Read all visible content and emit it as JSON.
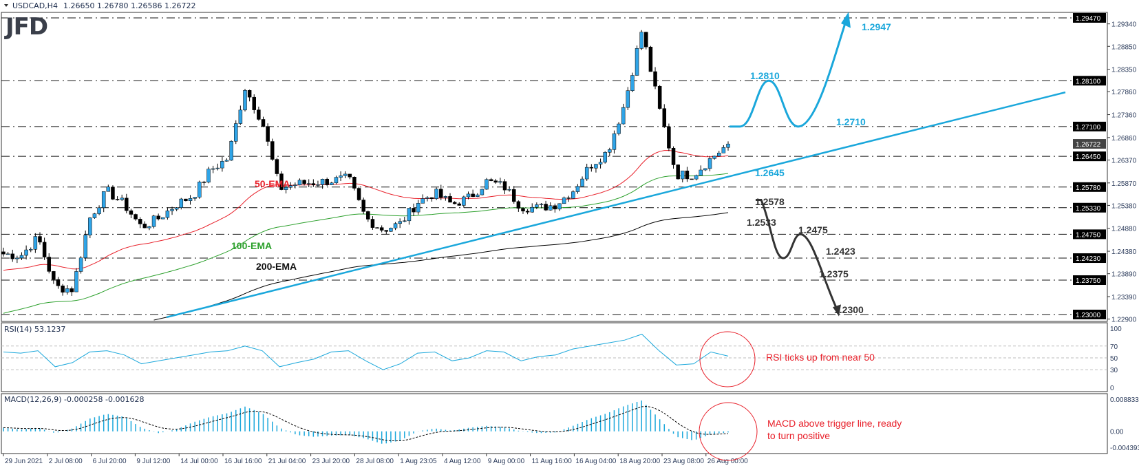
{
  "header": {
    "symbol": "USDCAD,H4",
    "ohlc": "1.26650 1.26780 1.26586 1.26722"
  },
  "logo": "JFD",
  "colors": {
    "accent": "#1aa7db",
    "ema50": "#e8202a",
    "ema100": "#2ca02c",
    "ema200": "#000000",
    "bull": "#2fa4e7",
    "bear": "#000000",
    "note": "#e8202a"
  },
  "chart_data": [
    {
      "type": "candlestick",
      "title": "USDCAD,H4",
      "ylim": [
        1.229,
        1.296
      ],
      "x_ticks": [
        "29 Jun 2021",
        "2 Jul 08:00",
        "6 Jul 20:00",
        "9 Jul 12:00",
        "14 Jul 00:00",
        "16 Jul 16:00",
        "21 Jul 04:00",
        "23 Jul 20:00",
        "28 Jul 08:00",
        "1 Aug 23:05",
        "4 Aug 12:00",
        "9 Aug 00:00",
        "11 Aug 16:00",
        "16 Aug 04:00",
        "18 Aug 20:00",
        "23 Aug 08:00",
        "26 Aug 00:00"
      ],
      "y_ticks": [
        "1.29340",
        "1.28850",
        "1.28350",
        "1.27860",
        "1.27360",
        "1.26860",
        "1.26370",
        "1.25870",
        "1.25380",
        "1.24880",
        "1.24380",
        "1.23890",
        "1.23390",
        "1.22900"
      ],
      "current_price": "1.26722",
      "close_samples": [
        1.2432,
        1.2428,
        1.2468,
        1.236,
        1.2355,
        1.251,
        1.257,
        1.254,
        1.249,
        1.251,
        1.254,
        1.256,
        1.2615,
        1.264,
        1.2795,
        1.272,
        1.2575,
        1.2585,
        1.2588,
        1.2592,
        1.2597,
        1.251,
        1.2485,
        1.2498,
        1.2545,
        1.2565,
        1.254,
        1.2555,
        1.259,
        1.258,
        1.2535,
        1.2532,
        1.254,
        1.257,
        1.2625,
        1.2655,
        1.276,
        1.292,
        1.275,
        1.2605,
        1.2605,
        1.264,
        1.2672
      ],
      "ema_labels": {
        "ema50": "50-EMA",
        "ema100": "100-EMA",
        "ema200": "200-EMA"
      },
      "levels": [
        {
          "price": 1.2947,
          "axis_label": "1.29470",
          "label": "1.2947",
          "color": "#1aa7db"
        },
        {
          "price": 1.281,
          "axis_label": "1.28100",
          "label": "1.2810",
          "color": "#1aa7db"
        },
        {
          "price": 1.271,
          "axis_label": "1.27100",
          "label": "1.2710",
          "color": "#1aa7db"
        },
        {
          "price": 1.2645,
          "axis_label": "1.26450",
          "label": "1.2645",
          "color": "#1aa7db"
        },
        {
          "price": 1.2578,
          "axis_label": "1.25780",
          "label": "1.2578",
          "color": "#333333"
        },
        {
          "price": 1.2533,
          "axis_label": "1.25330",
          "label": "1.2533",
          "color": "#333333"
        },
        {
          "price": 1.2475,
          "axis_label": "1.24750",
          "label": "1.2475",
          "color": "#333333"
        },
        {
          "price": 1.2423,
          "axis_label": "1.24230",
          "label": "1.2423",
          "color": "#333333"
        },
        {
          "price": 1.2375,
          "axis_label": "1.23750",
          "label": "1.2375",
          "color": "#333333"
        },
        {
          "price": 1.23,
          "axis_label": "1.23000",
          "label": "1.2300",
          "color": "#333333"
        }
      ],
      "trendline": {
        "from": 1.2294,
        "to": 1.2805
      }
    },
    {
      "type": "line",
      "title": "RSI(14) 53.1237",
      "ylim": [
        0,
        100
      ],
      "y_ticks": [
        "100",
        "70",
        "50",
        "30",
        "0"
      ],
      "values": [
        60,
        58,
        62,
        35,
        42,
        60,
        62,
        55,
        40,
        45,
        50,
        55,
        60,
        62,
        70,
        62,
        35,
        42,
        48,
        60,
        62,
        45,
        30,
        40,
        58,
        60,
        45,
        50,
        62,
        60,
        45,
        52,
        55,
        65,
        70,
        75,
        80,
        90,
        62,
        38,
        40,
        60,
        53
      ],
      "note": "RSI ticks up from near 50"
    },
    {
      "type": "bar",
      "title": "MACD(12,26,9) -0.000258 -0.001628",
      "ylim": [
        -0.004393,
        0.008833
      ],
      "y_ticks": [
        "0.008833",
        "0.00",
        "-0.004393"
      ],
      "values": [
        0.001,
        0.0005,
        0.001,
        -0.0005,
        0.0008,
        0.0035,
        0.0048,
        0.004,
        0.001,
        -0.0005,
        0.0005,
        0.0025,
        0.004,
        0.005,
        0.0068,
        0.005,
        0.001,
        -0.001,
        -0.0015,
        -0.0012,
        -0.001,
        -0.002,
        -0.0035,
        -0.0025,
        0,
        0.0008,
        0.0002,
        0.001,
        0.0015,
        0.0012,
        0,
        -0.0005,
        -0.0003,
        0.0015,
        0.0035,
        0.005,
        0.007,
        0.0085,
        0.0035,
        -0.0015,
        -0.0025,
        -0.0008,
        -0.0003
      ],
      "note_line1": "MACD above trigger line, ready",
      "note_line2": "to turn positive"
    }
  ]
}
